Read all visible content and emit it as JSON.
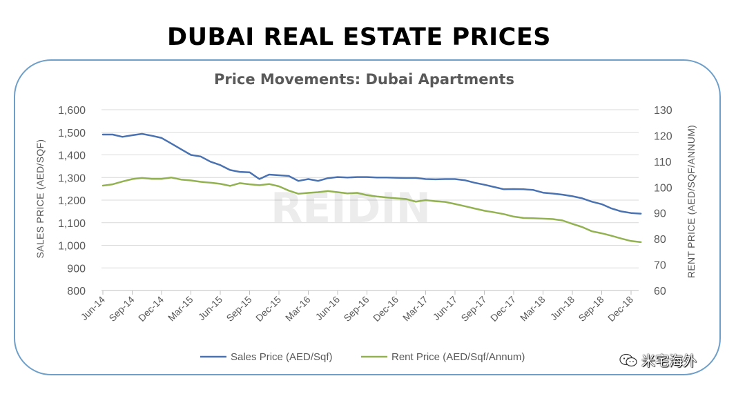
{
  "header": {
    "title": "DUBAI REAL ESTATE PRICES"
  },
  "chart_data": {
    "type": "line",
    "title": "Price Movements: Dubai Apartments",
    "ylabel_left": "SALES PRICE (AED/SQF)",
    "ylabel_right": "RENT PRICE (AED/SQF/ANNUM)",
    "y_left": {
      "min": 800,
      "max": 1600,
      "ticks": [
        800,
        900,
        1000,
        1100,
        1200,
        1300,
        1400,
        1500,
        1600
      ],
      "tick_labels": [
        "800",
        "900",
        "1,000",
        "1,100",
        "1,200",
        "1,300",
        "1,400",
        "1,500",
        "1,600"
      ]
    },
    "y_right": {
      "min": 60,
      "max": 130,
      "ticks": [
        60,
        70,
        80,
        90,
        100,
        110,
        120,
        130
      ],
      "tick_labels": [
        "60",
        "70",
        "80",
        "90",
        "100",
        "110",
        "120",
        "130"
      ]
    },
    "x_start": "Jun-14",
    "x_end": "Jan-19",
    "x_tick_labels": [
      "Jun-14",
      "Sep-14",
      "Dec-14",
      "Mar-15",
      "Jun-15",
      "Sep-15",
      "Dec-15",
      "Mar-16",
      "Jun-16",
      "Sep-16",
      "Dec-16",
      "Mar-17",
      "Jun-17",
      "Sep-17",
      "Dec-17",
      "Mar-18",
      "Jun-18",
      "Sep-18",
      "Dec-18"
    ],
    "grid": "horizontal",
    "legend_position": "bottom",
    "series": [
      {
        "name": "Sales Price (AED/Sqf)",
        "axis": "left",
        "color": "#4a72b0",
        "values": [
          1490,
          1490,
          1480,
          1487,
          1493,
          1485,
          1475,
          1450,
          1425,
          1400,
          1393,
          1370,
          1355,
          1333,
          1325,
          1323,
          1293,
          1313,
          1310,
          1307,
          1285,
          1293,
          1285,
          1297,
          1302,
          1300,
          1302,
          1302,
          1300,
          1300,
          1299,
          1298,
          1298,
          1293,
          1292,
          1293,
          1293,
          1288,
          1277,
          1268,
          1258,
          1248,
          1249,
          1248,
          1245,
          1233,
          1229,
          1224,
          1217,
          1208,
          1193,
          1182,
          1163,
          1150,
          1143,
          1140
        ]
      },
      {
        "name": "Rent Price (AED/Sqf/Annum)",
        "axis": "left",
        "color": "#92b150",
        "values": [
          1264,
          1270,
          1282,
          1293,
          1298,
          1294,
          1294,
          1300,
          1291,
          1287,
          1281,
          1277,
          1272,
          1263,
          1275,
          1270,
          1266,
          1271,
          1261,
          1242,
          1228,
          1232,
          1235,
          1240,
          1235,
          1230,
          1232,
          1222,
          1216,
          1212,
          1208,
          1205,
          1193,
          1200,
          1195,
          1192,
          1183,
          1173,
          1163,
          1153,
          1146,
          1138,
          1127,
          1121,
          1120,
          1118,
          1116,
          1110,
          1095,
          1081,
          1062,
          1053,
          1042,
          1030,
          1019,
          1014
        ]
      }
    ]
  },
  "watermark": {
    "text": "米宅海外"
  }
}
